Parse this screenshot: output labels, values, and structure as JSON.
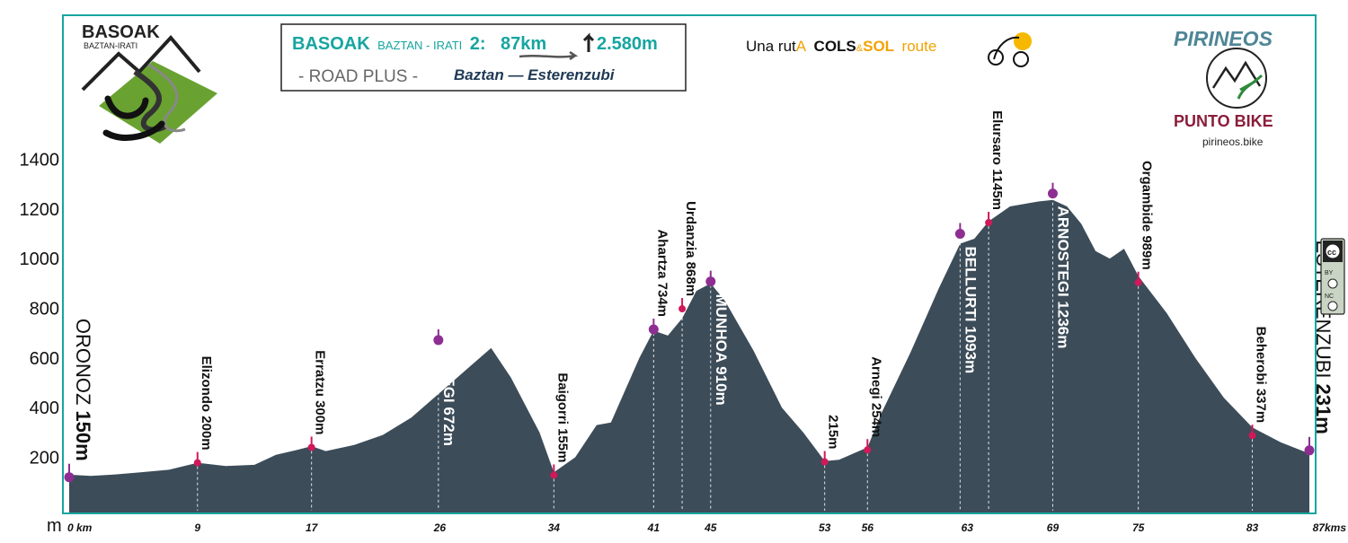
{
  "header": {
    "route_name": "BASOAK",
    "route_sub": "BAZTAN - IRATI",
    "route_num": "2:",
    "distance": "87km",
    "elevation": "2.580m",
    "category": "- ROAD PLUS -",
    "route_path": "Baztan — Esterenzubi"
  },
  "basoak_logo": {
    "title": "BASOAK",
    "subtitle": "BAZTAN-IRATI"
  },
  "cols_sol": {
    "prefix": "Una rut",
    "a": "A",
    "cols": "COLS",
    "amp": "&",
    "sol": "SOL",
    "route": "route"
  },
  "brand": {
    "pirineos": "PIRINEOS",
    "punto": "PUNTO BIKE",
    "url": "pirineos.bike"
  },
  "license": {
    "by": "BY",
    "nc": "NC"
  },
  "colors": {
    "profile": "#3c4c59",
    "accent": "#16a5a0",
    "pass_marker": "#8e2e92",
    "town_marker": "#d1195a",
    "text": "#111111"
  },
  "chart_data": {
    "type": "area",
    "x_unit_label": "m",
    "xlim": [
      0,
      87
    ],
    "ylim": [
      0,
      1500
    ],
    "yticks": [
      200,
      400,
      600,
      800,
      1000,
      1200,
      1400
    ],
    "xticks": [
      {
        "value": 0,
        "label": "0 km"
      },
      {
        "value": 9,
        "label": "9"
      },
      {
        "value": 17,
        "label": "17"
      },
      {
        "value": 26,
        "label": "26"
      },
      {
        "value": 34,
        "label": "34"
      },
      {
        "value": 41,
        "label": "41"
      },
      {
        "value": 45,
        "label": "45"
      },
      {
        "value": 53,
        "label": "53"
      },
      {
        "value": 56,
        "label": "56"
      },
      {
        "value": 63,
        "label": "63"
      },
      {
        "value": 69,
        "label": "69"
      },
      {
        "value": 75,
        "label": "75"
      },
      {
        "value": 83,
        "label": "83"
      },
      {
        "value": 87,
        "label": "87kms"
      }
    ],
    "profile": [
      [
        0,
        130
      ],
      [
        1.5,
        125
      ],
      [
        3,
        130
      ],
      [
        5,
        140
      ],
      [
        7,
        150
      ],
      [
        9,
        178
      ],
      [
        11,
        165
      ],
      [
        13,
        170
      ],
      [
        14.5,
        210
      ],
      [
        16,
        230
      ],
      [
        17,
        245
      ],
      [
        18,
        225
      ],
      [
        20,
        250
      ],
      [
        22,
        290
      ],
      [
        24,
        360
      ],
      [
        26,
        460
      ],
      [
        28,
        560
      ],
      [
        29.6,
        640
      ],
      [
        31,
        520
      ],
      [
        33,
        300
      ],
      [
        34,
        140
      ],
      [
        35.5,
        200
      ],
      [
        37,
        330
      ],
      [
        38,
        340
      ],
      [
        40,
        600
      ],
      [
        41,
        710
      ],
      [
        42,
        690
      ],
      [
        43,
        760
      ],
      [
        44,
        870
      ],
      [
        45,
        900
      ],
      [
        46,
        830
      ],
      [
        48,
        630
      ],
      [
        50,
        400
      ],
      [
        51.5,
        300
      ],
      [
        53,
        185
      ],
      [
        54,
        190
      ],
      [
        55,
        215
      ],
      [
        56,
        240
      ],
      [
        57,
        380
      ],
      [
        59,
        620
      ],
      [
        61,
        880
      ],
      [
        62.5,
        1060
      ],
      [
        63.5,
        1080
      ],
      [
        64.5,
        1150
      ],
      [
        66,
        1210
      ],
      [
        68,
        1230
      ],
      [
        69,
        1236
      ],
      [
        70,
        1210
      ],
      [
        71,
        1140
      ],
      [
        72,
        1030
      ],
      [
        73,
        1000
      ],
      [
        74,
        1040
      ],
      [
        75,
        930
      ],
      [
        77,
        780
      ],
      [
        79,
        600
      ],
      [
        81,
        440
      ],
      [
        83,
        320
      ],
      [
        85,
        260
      ],
      [
        87,
        215
      ]
    ],
    "points": [
      {
        "km": 0,
        "alt": 120,
        "marker": "pass",
        "style": "end",
        "name": "ORONOZ",
        "alt_text": "150m"
      },
      {
        "km": 9,
        "alt": 178,
        "marker": "town",
        "style": "above",
        "text": "Elizondo 200m"
      },
      {
        "km": 17,
        "alt": 240,
        "marker": "town",
        "style": "above",
        "text": "Erratzu 300m"
      },
      {
        "km": 25.9,
        "alt": 672,
        "marker": "pass",
        "style": "inside",
        "text": "IZPEGI 672m"
      },
      {
        "km": 34,
        "alt": 128,
        "marker": "town",
        "style": "above",
        "text": "Baigorri 155m"
      },
      {
        "km": 41,
        "alt": 715,
        "marker": "pass",
        "style": "above",
        "text": "Ahartza 734m"
      },
      {
        "km": 43,
        "alt": 798,
        "marker": "town",
        "style": "above",
        "text": "Urdanzia 868m"
      },
      {
        "km": 45,
        "alt": 908,
        "marker": "pass",
        "style": "inside",
        "text": "MUNHOA 910m"
      },
      {
        "km": 53,
        "alt": 182,
        "marker": "town",
        "style": "above",
        "text": "215m"
      },
      {
        "km": 56,
        "alt": 230,
        "marker": "town",
        "style": "above",
        "text": "Arnegi 254m"
      },
      {
        "km": 62.5,
        "alt": 1100,
        "marker": "pass",
        "style": "inside",
        "text": "BELLURTI 1093m"
      },
      {
        "km": 64.5,
        "alt": 1145,
        "marker": "town",
        "style": "above",
        "text": "Elursaro 1145m"
      },
      {
        "km": 69,
        "alt": 1262,
        "marker": "pass",
        "style": "inside",
        "text": "ARNOSTEGI 1236m"
      },
      {
        "km": 75,
        "alt": 904,
        "marker": "town",
        "style": "above",
        "text": "Orgambide 989m"
      },
      {
        "km": 83,
        "alt": 288,
        "marker": "town",
        "style": "above",
        "text": "Beherobi 337m"
      },
      {
        "km": 87,
        "alt": 228,
        "marker": "pass",
        "style": "end",
        "name": "ESTERENZUBI",
        "alt_text": "231m"
      }
    ]
  }
}
